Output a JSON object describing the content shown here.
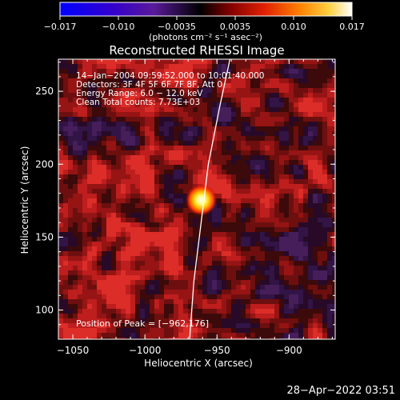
{
  "chart_data": {
    "type": "heatmap",
    "title": "Reconstructed RHESSI Image",
    "xlabel": "Heliocentric X (arcsec)",
    "ylabel": "Heliocentric Y (arcsec)",
    "xlim": [
      -1060,
      -868
    ],
    "ylim": [
      80,
      272
    ],
    "x_ticks": [
      -1050,
      -1000,
      -950,
      -900
    ],
    "y_ticks": [
      100,
      150,
      200,
      250
    ],
    "colorbar": {
      "unit": "(photons cm⁻² s⁻¹ asec⁻²)",
      "range": [
        -0.017,
        0.017
      ],
      "ticks": [
        "−0.017",
        "−0.010",
        "−0.0035",
        "0.0035",
        "0.010",
        "0.017"
      ],
      "colors": [
        "#0000ff",
        "#3300cc",
        "#5a1a9a",
        "#000000",
        "#800000",
        "#e02000",
        "#ff8000",
        "#ffd040",
        "#ffffff"
      ]
    },
    "annotations": [
      "14−Jan−2004 09:59:52.000 to 10:01:40.000",
      "Detectors: 3F 4F 5F 6F 7F 8F, Att 0",
      "Energy Range: 6.0 − 12.0 keV",
      "Clean    Total counts: 7.73E+03"
    ],
    "peak_label": "Position of Peak = [−962,176]",
    "peak": {
      "x": -962,
      "y": 176
    },
    "limb_points": [
      [
        -969,
        80
      ],
      [
        -966,
        120
      ],
      [
        -961,
        160
      ],
      [
        -956,
        200
      ],
      [
        -948,
        240
      ],
      [
        -941,
        272
      ]
    ]
  },
  "footer": {
    "timestamp": "28−Apr−2022 03:51"
  }
}
